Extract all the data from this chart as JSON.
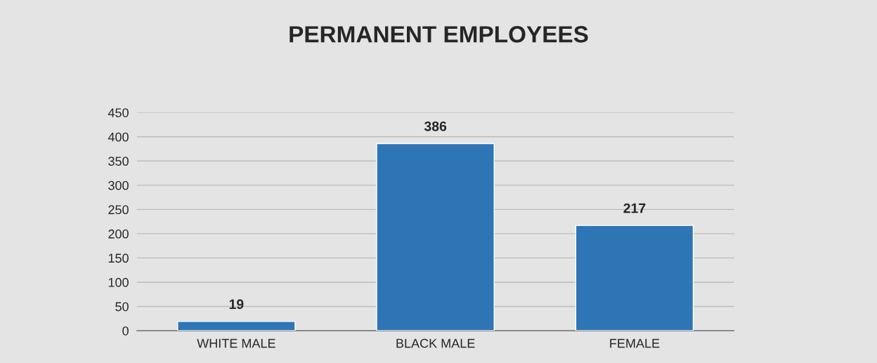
{
  "chart_data": {
    "type": "bar",
    "title": "PERMANENT EMPLOYEES",
    "categories": [
      "WHITE MALE",
      "BLACK MALE",
      "FEMALE"
    ],
    "values": [
      19,
      386,
      217
    ],
    "color": "#2e75b6",
    "ylim": [
      0,
      450
    ],
    "yticks": [
      0,
      50,
      100,
      150,
      200,
      250,
      300,
      350,
      400,
      450
    ],
    "grid": "y",
    "data_labels": true
  }
}
